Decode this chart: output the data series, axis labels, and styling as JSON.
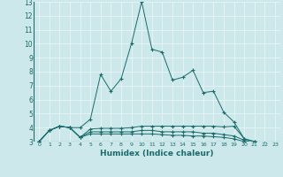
{
  "xlabel": "Humidex (Indice chaleur)",
  "xlim": [
    -0.5,
    23.5
  ],
  "ylim": [
    3,
    13
  ],
  "yticks": [
    3,
    4,
    5,
    6,
    7,
    8,
    9,
    10,
    11,
    12,
    13
  ],
  "xticks": [
    0,
    1,
    2,
    3,
    4,
    5,
    6,
    7,
    8,
    9,
    10,
    11,
    12,
    13,
    14,
    15,
    16,
    17,
    18,
    19,
    20,
    21,
    22,
    23
  ],
  "background_color": "#cce8ea",
  "grid_color": "#e8f4f5",
  "line_color": "#1a6b6b",
  "line1_x": [
    0,
    1,
    2,
    3,
    4,
    5,
    6,
    7,
    8,
    9,
    10,
    11,
    12,
    13,
    14,
    15,
    16,
    17,
    18,
    19,
    20,
    21,
    22,
    23
  ],
  "line1_y": [
    3.0,
    3.8,
    4.1,
    4.0,
    4.0,
    4.6,
    7.8,
    6.6,
    7.5,
    10.0,
    13.0,
    9.6,
    9.4,
    7.4,
    7.6,
    8.1,
    6.5,
    6.6,
    5.1,
    4.4,
    3.2,
    3.0,
    2.9,
    2.8
  ],
  "line2_x": [
    0,
    1,
    2,
    3,
    4,
    5,
    6,
    7,
    8,
    9,
    10,
    11,
    12,
    13,
    14,
    15,
    16,
    17,
    18,
    19,
    20,
    21,
    22,
    23
  ],
  "line2_y": [
    3.0,
    3.8,
    4.1,
    4.0,
    3.3,
    3.9,
    3.95,
    3.95,
    3.95,
    4.0,
    4.1,
    4.1,
    4.1,
    4.1,
    4.1,
    4.1,
    4.1,
    4.1,
    4.05,
    4.1,
    3.2,
    3.0,
    2.9,
    2.8
  ],
  "line3_x": [
    0,
    1,
    2,
    3,
    4,
    5,
    6,
    7,
    8,
    9,
    10,
    11,
    12,
    13,
    14,
    15,
    16,
    17,
    18,
    19,
    20,
    21,
    22,
    23
  ],
  "line3_y": [
    3.0,
    3.8,
    4.1,
    4.0,
    3.3,
    3.7,
    3.7,
    3.7,
    3.7,
    3.7,
    3.8,
    3.8,
    3.7,
    3.7,
    3.7,
    3.7,
    3.6,
    3.6,
    3.5,
    3.4,
    3.1,
    2.9,
    2.8,
    2.7
  ],
  "line4_x": [
    0,
    1,
    2,
    3,
    4,
    5,
    6,
    7,
    8,
    9,
    10,
    11,
    12,
    13,
    14,
    15,
    16,
    17,
    18,
    19,
    20,
    21,
    22,
    23
  ],
  "line4_y": [
    3.0,
    3.8,
    4.1,
    4.0,
    3.3,
    3.55,
    3.55,
    3.55,
    3.55,
    3.55,
    3.55,
    3.55,
    3.5,
    3.45,
    3.45,
    3.4,
    3.4,
    3.35,
    3.3,
    3.2,
    3.0,
    2.8,
    2.75,
    2.7
  ]
}
